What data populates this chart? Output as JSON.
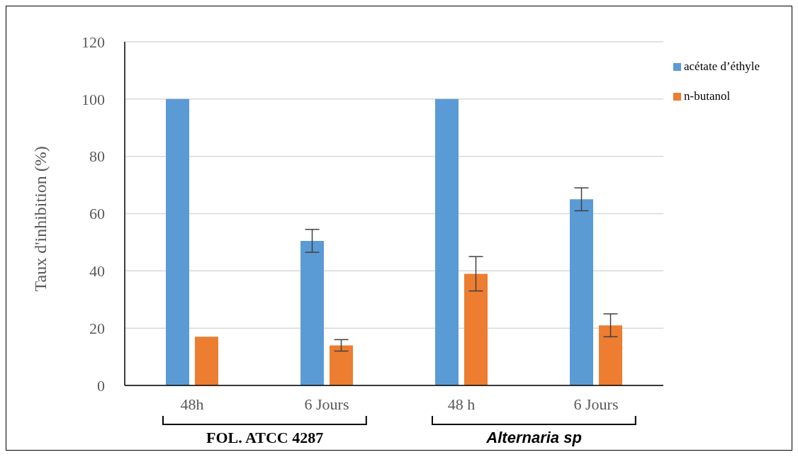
{
  "chart_data": {
    "type": "bar",
    "categories": [
      "48h",
      "6 Jours",
      "48 h",
      "6 Jours"
    ],
    "series": [
      {
        "name": "acétate d’éthyle",
        "color": "#5b9bd5",
        "values": [
          100,
          50.5,
          100,
          65
        ],
        "errors": [
          0,
          4,
          0,
          4
        ]
      },
      {
        "name": "n-butanol",
        "color": "#ed7d31",
        "values": [
          17,
          14,
          39,
          21
        ],
        "errors": [
          0,
          2,
          6,
          4
        ]
      }
    ],
    "ylabel": "Taux d'inhibition (%)",
    "ylim": [
      0,
      120
    ],
    "yticks": [
      0,
      20,
      40,
      60,
      80,
      100,
      120
    ],
    "grid": "y",
    "legend": "right",
    "annotations": [
      "FOL. ATCC 4287",
      "Alternaria sp"
    ]
  }
}
